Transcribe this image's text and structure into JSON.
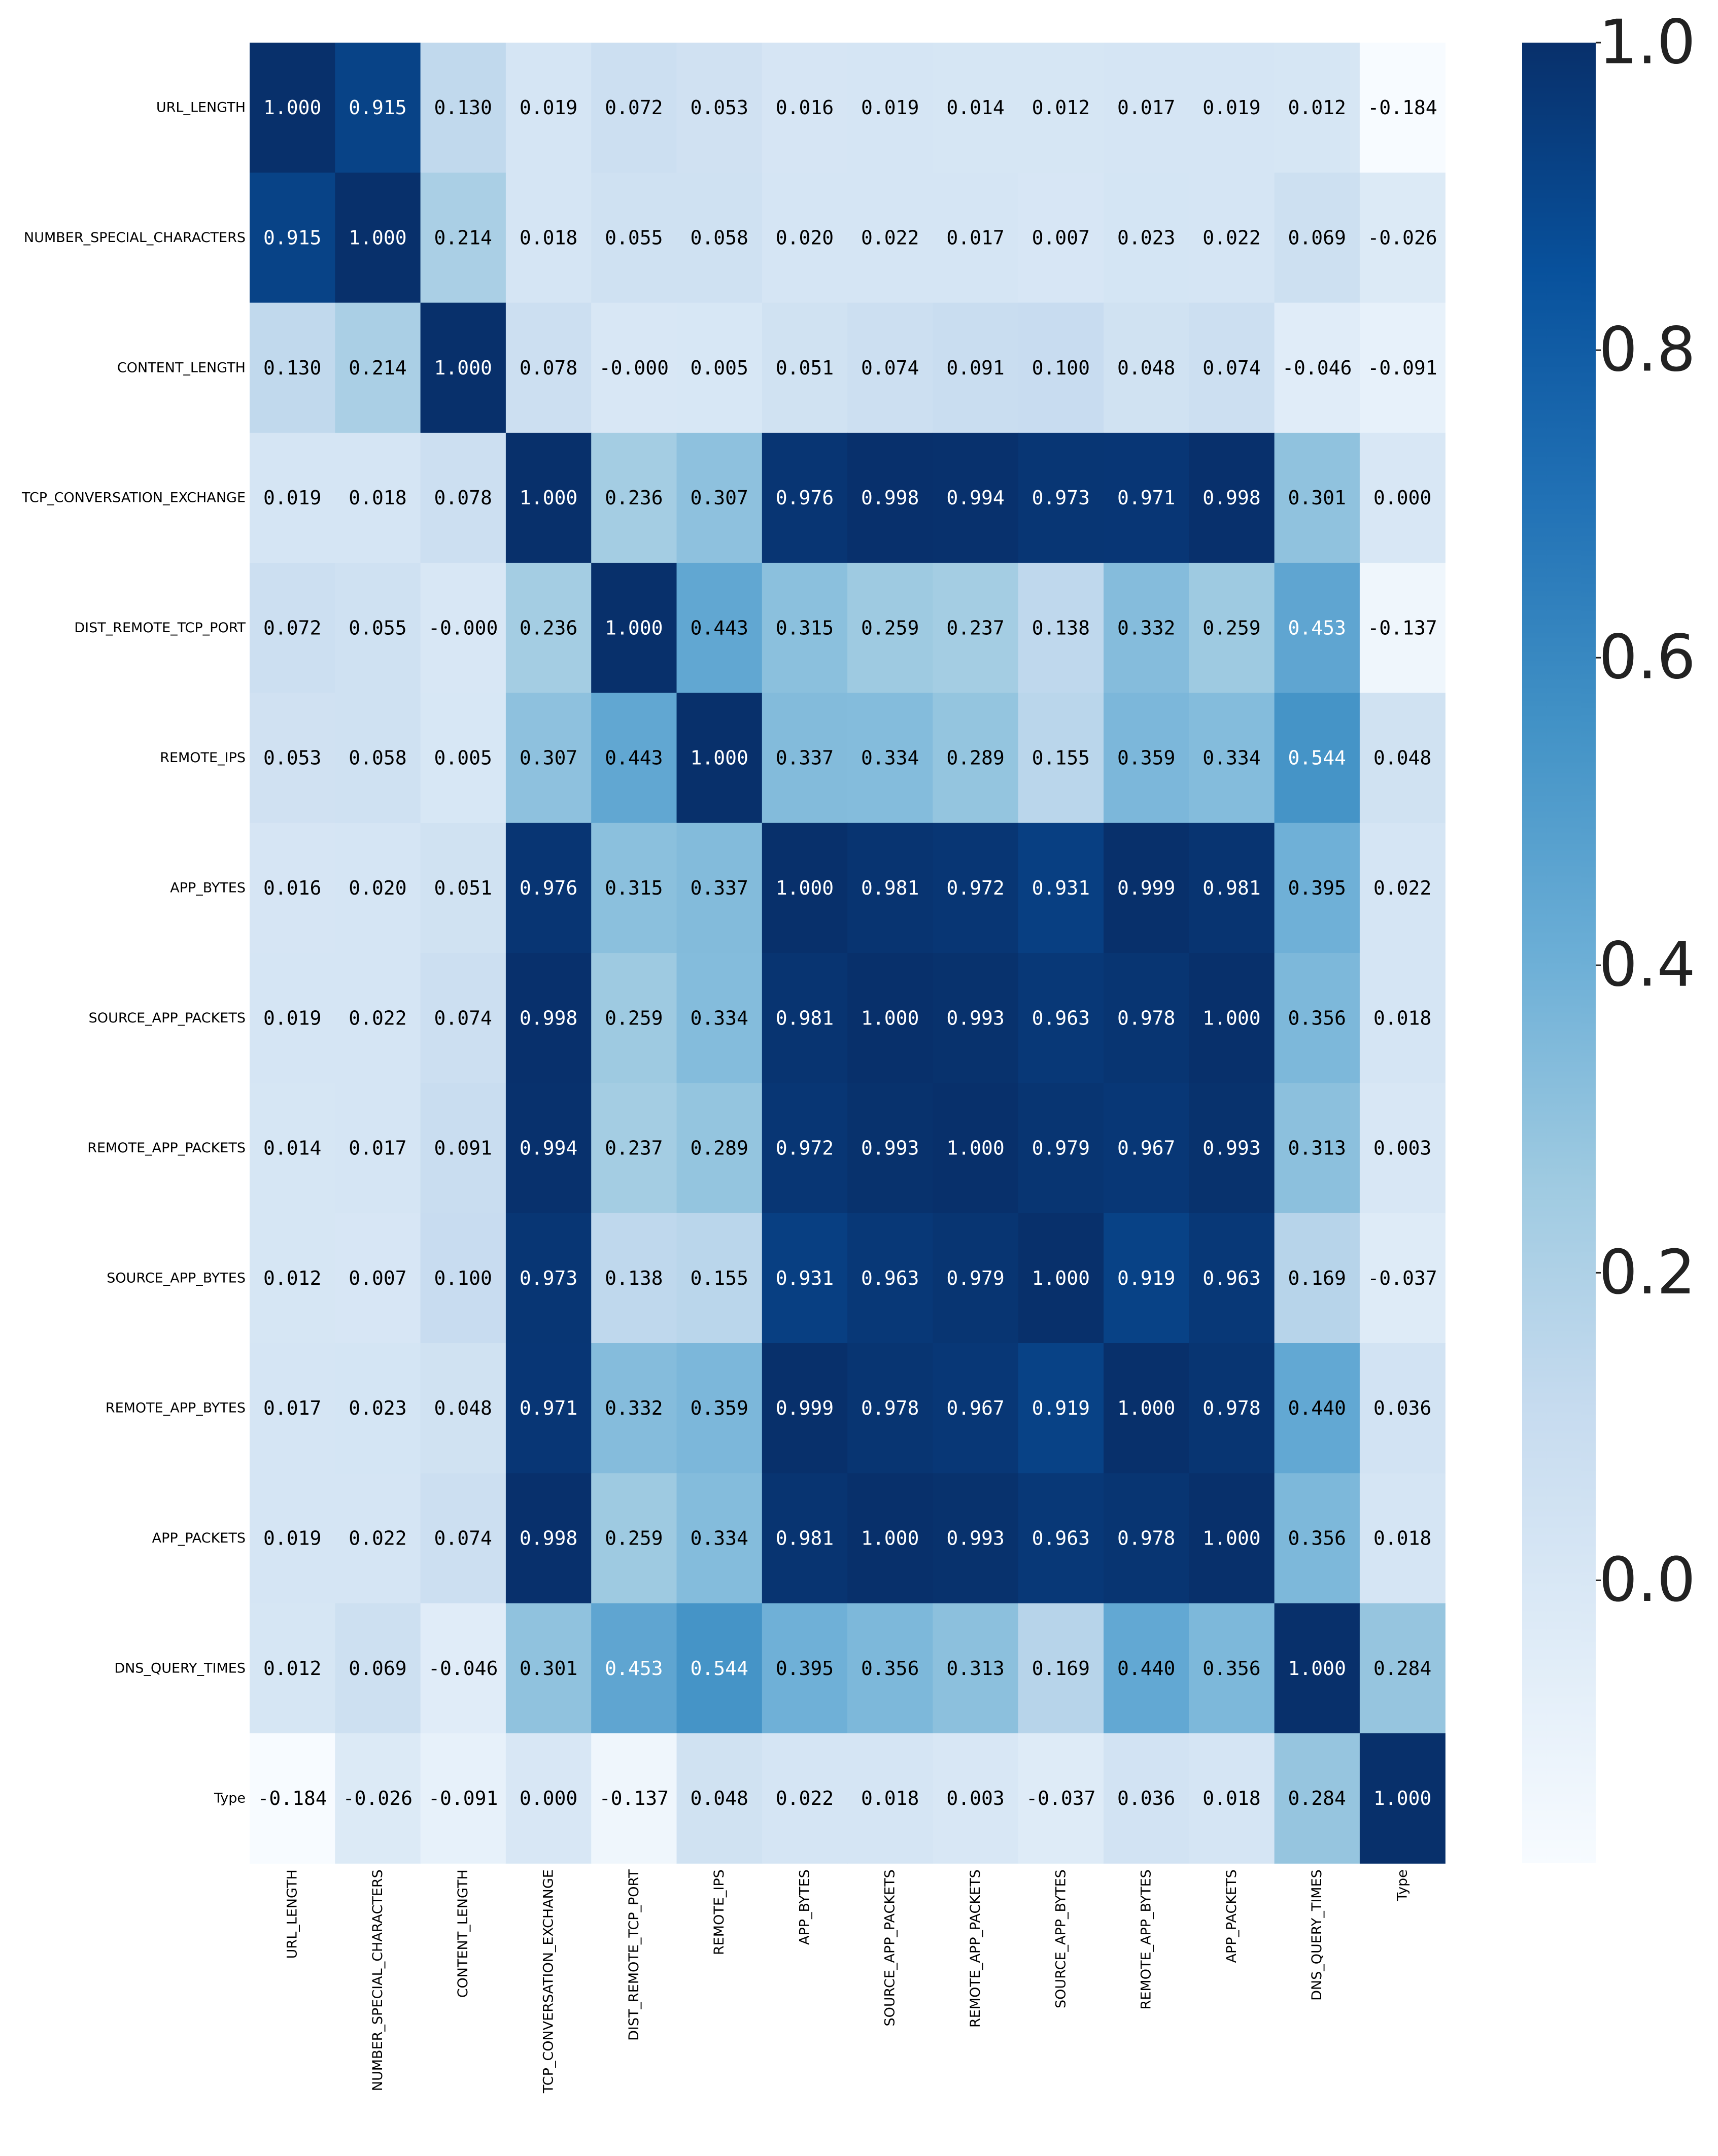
{
  "chart_data": {
    "type": "heatmap",
    "title": "",
    "colormap": "Blues",
    "labels": [
      "URL_LENGTH",
      "NUMBER_SPECIAL_CHARACTERS",
      "CONTENT_LENGTH",
      "TCP_CONVERSATION_EXCHANGE",
      "DIST_REMOTE_TCP_PORT",
      "REMOTE_IPS",
      "APP_BYTES",
      "SOURCE_APP_PACKETS",
      "REMOTE_APP_PACKETS",
      "SOURCE_APP_BYTES",
      "REMOTE_APP_BYTES",
      "APP_PACKETS",
      "DNS_QUERY_TIMES",
      "Type"
    ],
    "values": [
      [
        "1.000",
        "0.915",
        "0.130",
        "0.019",
        "0.072",
        "0.053",
        "0.016",
        "0.019",
        "0.014",
        "0.012",
        "0.017",
        "0.019",
        "0.012",
        "-0.184"
      ],
      [
        "0.915",
        "1.000",
        "0.214",
        "0.018",
        "0.055",
        "0.058",
        "0.020",
        "0.022",
        "0.017",
        "0.007",
        "0.023",
        "0.022",
        "0.069",
        "-0.026"
      ],
      [
        "0.130",
        "0.214",
        "1.000",
        "0.078",
        "-0.000",
        "0.005",
        "0.051",
        "0.074",
        "0.091",
        "0.100",
        "0.048",
        "0.074",
        "-0.046",
        "-0.091"
      ],
      [
        "0.019",
        "0.018",
        "0.078",
        "1.000",
        "0.236",
        "0.307",
        "0.976",
        "0.998",
        "0.994",
        "0.973",
        "0.971",
        "0.998",
        "0.301",
        "0.000"
      ],
      [
        "0.072",
        "0.055",
        "-0.000",
        "0.236",
        "1.000",
        "0.443",
        "0.315",
        "0.259",
        "0.237",
        "0.138",
        "0.332",
        "0.259",
        "0.453",
        "-0.137"
      ],
      [
        "0.053",
        "0.058",
        "0.005",
        "0.307",
        "0.443",
        "1.000",
        "0.337",
        "0.334",
        "0.289",
        "0.155",
        "0.359",
        "0.334",
        "0.544",
        "0.048"
      ],
      [
        "0.016",
        "0.020",
        "0.051",
        "0.976",
        "0.315",
        "0.337",
        "1.000",
        "0.981",
        "0.972",
        "0.931",
        "0.999",
        "0.981",
        "0.395",
        "0.022"
      ],
      [
        "0.019",
        "0.022",
        "0.074",
        "0.998",
        "0.259",
        "0.334",
        "0.981",
        "1.000",
        "0.993",
        "0.963",
        "0.978",
        "1.000",
        "0.356",
        "0.018"
      ],
      [
        "0.014",
        "0.017",
        "0.091",
        "0.994",
        "0.237",
        "0.289",
        "0.972",
        "0.993",
        "1.000",
        "0.979",
        "0.967",
        "0.993",
        "0.313",
        "0.003"
      ],
      [
        "0.012",
        "0.007",
        "0.100",
        "0.973",
        "0.138",
        "0.155",
        "0.931",
        "0.963",
        "0.979",
        "1.000",
        "0.919",
        "0.963",
        "0.169",
        "-0.037"
      ],
      [
        "0.017",
        "0.023",
        "0.048",
        "0.971",
        "0.332",
        "0.359",
        "0.999",
        "0.978",
        "0.967",
        "0.919",
        "1.000",
        "0.978",
        "0.440",
        "0.036"
      ],
      [
        "0.019",
        "0.022",
        "0.074",
        "0.998",
        "0.259",
        "0.334",
        "0.981",
        "1.000",
        "0.993",
        "0.963",
        "0.978",
        "1.000",
        "0.356",
        "0.018"
      ],
      [
        "0.012",
        "0.069",
        "-0.046",
        "0.301",
        "0.453",
        "0.544",
        "0.395",
        "0.356",
        "0.313",
        "0.169",
        "0.440",
        "0.356",
        "1.000",
        "0.284"
      ],
      [
        "-0.184",
        "-0.026",
        "-0.091",
        "0.000",
        "-0.137",
        "0.048",
        "0.022",
        "0.018",
        "0.003",
        "-0.037",
        "0.036",
        "0.018",
        "0.284",
        "1.000"
      ]
    ],
    "colorbar": {
      "vmin": -0.184,
      "vmax": 1.0,
      "ticks": [
        0.0,
        0.2,
        0.4,
        0.6,
        0.8,
        1.0
      ],
      "tick_labels": [
        "0.0",
        "0.2",
        "0.4",
        "0.6",
        "0.8",
        "1.0"
      ]
    }
  }
}
